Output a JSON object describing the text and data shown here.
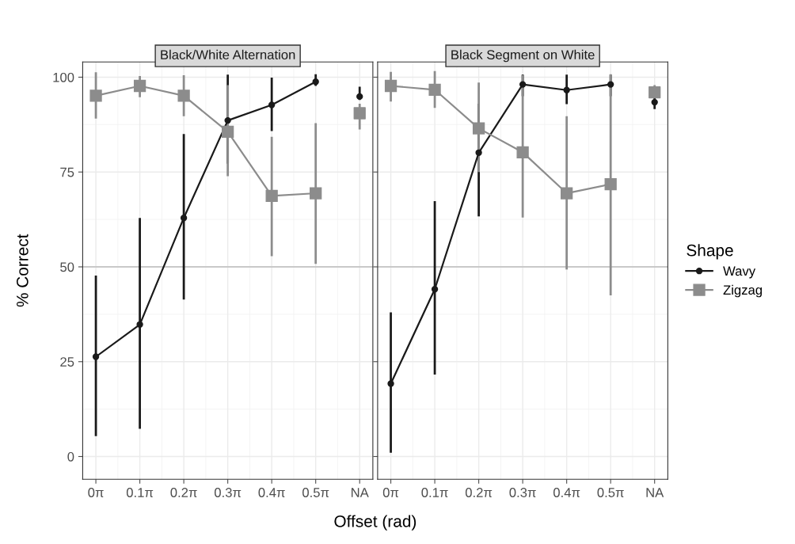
{
  "chart_data": [
    {
      "type": "line",
      "title": "Black/White Alternation",
      "xlabel": "Offset (rad)",
      "ylabel": "% Correct",
      "categories": [
        "0π",
        "0.1π",
        "0.2π",
        "0.3π",
        "0.4π",
        "0.5π",
        "NA"
      ],
      "ylim": [
        -6,
        104
      ],
      "yticks": [
        0,
        25,
        50,
        75,
        100
      ],
      "grid": true,
      "ref_lines": [
        {
          "axis": "y",
          "value": 50,
          "color": "#bdbdbd"
        }
      ],
      "legend": "right",
      "legend_title": "Shape",
      "series": [
        {
          "name": "Wavy",
          "color": "#1a1a1a",
          "marker": "circle",
          "values": [
            26.3,
            34.8,
            62.9,
            88.6,
            92.7,
            98.8,
            null
          ],
          "errors": [
            [
              5.4,
              47.7
            ],
            [
              7.3,
              62.9
            ],
            [
              41.4,
              85.0
            ],
            [
              77.2,
              100.7
            ],
            [
              85.8,
              99.9
            ],
            [
              97.7,
              100.8
            ],
            null
          ]
        },
        {
          "name": "Zigzag",
          "color": "#8c8c8c",
          "marker": "square",
          "values": [
            95.1,
            97.7,
            95.1,
            85.6,
            68.7,
            69.4,
            null
          ],
          "errors": [
            [
              89.1,
              101.3
            ],
            [
              94.7,
              100.3
            ],
            [
              89.7,
              100.5
            ],
            [
              73.9,
              97.9
            ],
            [
              52.8,
              84.3
            ],
            [
              50.8,
              87.9
            ],
            null
          ]
        },
        {
          "type": "scatter",
          "color": "#1a1a1a",
          "marker": "circle",
          "values": [
            null,
            null,
            null,
            null,
            null,
            null,
            94.9
          ],
          "errors": [
            null,
            null,
            null,
            null,
            null,
            null,
            [
              94.0,
              97.5
            ]
          ]
        },
        {
          "type": "scatter",
          "color": "#8c8c8c",
          "marker": "square",
          "values": [
            null,
            null,
            null,
            null,
            null,
            null,
            90.5
          ],
          "errors": [
            null,
            null,
            null,
            null,
            null,
            null,
            [
              86.2,
              93.0
            ]
          ]
        }
      ]
    },
    {
      "type": "line",
      "title": "Black Segment on White",
      "categories": [
        "0π",
        "0.1π",
        "0.2π",
        "0.3π",
        "0.4π",
        "0.5π",
        "NA"
      ],
      "ylim": [
        -6,
        104
      ],
      "yticks": [
        0,
        25,
        50,
        75,
        100
      ],
      "grid": true,
      "tick_labels": "x",
      "ref_lines": [
        {
          "axis": "y",
          "value": 50,
          "color": "#bdbdbd"
        }
      ],
      "series": [
        {
          "color": "#1a1a1a",
          "marker": "circle",
          "values": [
            19.2,
            44.1,
            80.1,
            98.1,
            96.6,
            98.1,
            null
          ],
          "errors": [
            [
              1.0,
              38.0
            ],
            [
              21.6,
              67.3
            ],
            [
              63.3,
              93.0
            ],
            [
              95.0,
              100.7
            ],
            [
              92.9,
              100.7
            ],
            [
              95.0,
              100.7
            ],
            null
          ]
        },
        {
          "color": "#8c8c8c",
          "marker": "square",
          "values": [
            97.7,
            96.7,
            86.5,
            80.2,
            69.4,
            71.8,
            null
          ],
          "errors": [
            [
              93.6,
              101.4
            ],
            [
              91.9,
              101.6
            ],
            [
              75.0,
              98.6
            ],
            [
              63.0,
              100.5
            ],
            [
              49.3,
              89.7
            ],
            [
              42.5,
              100.8
            ],
            null
          ]
        },
        {
          "type": "scatter",
          "color": "#1a1a1a",
          "marker": "circle",
          "values": [
            null,
            null,
            null,
            null,
            null,
            null,
            93.4
          ],
          "errors": [
            null,
            null,
            null,
            null,
            null,
            null,
            [
              91.6,
              95.0
            ]
          ]
        },
        {
          "type": "scatter",
          "color": "#8c8c8c",
          "marker": "square",
          "values": [
            null,
            null,
            null,
            null,
            null,
            null,
            96.0
          ],
          "errors": [
            null,
            null,
            null,
            null,
            null,
            null,
            [
              94.8,
              97.9
            ]
          ]
        }
      ]
    }
  ]
}
